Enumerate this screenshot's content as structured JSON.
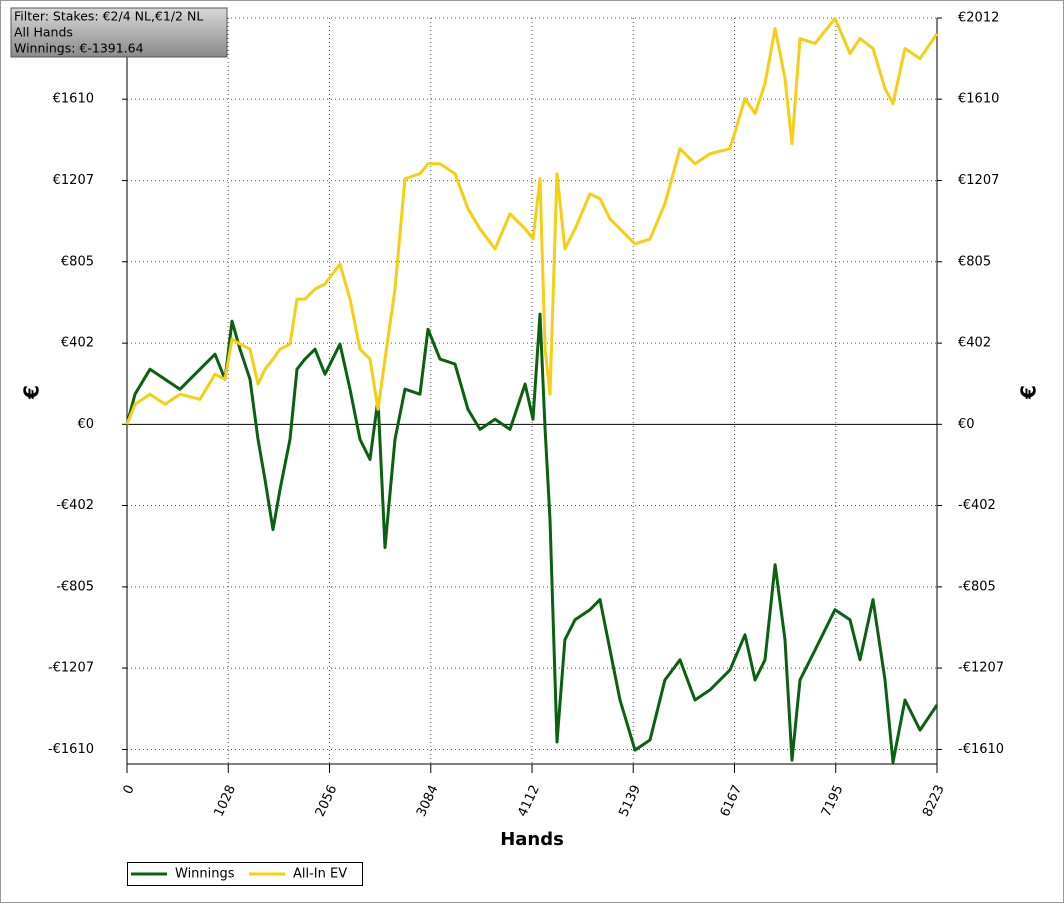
{
  "chart_data": {
    "type": "line",
    "annotations": [
      "Filter: Stakes: €2/4 NL,€1/2 NL",
      "All Hands",
      "Winnings: €-1391.64"
    ],
    "xlabel": "Hands",
    "ylabel": "€",
    "y2label": "€",
    "x": [
      0,
      81,
      233,
      386,
      538,
      741,
      893,
      995,
      1066,
      1147,
      1249,
      1330,
      1401,
      1482,
      1553,
      1655,
      1726,
      1807,
      1909,
      2010,
      2162,
      2264,
      2365,
      2467,
      2548,
      2619,
      2721,
      2822,
      2975,
      3056,
      3178,
      3330,
      3462,
      3584,
      3736,
      3888,
      4041,
      4122,
      4193,
      4244,
      4294,
      4365,
      4446,
      4548,
      4700,
      4802,
      4903,
      5005,
      5157,
      5309,
      5461,
      5614,
      5766,
      5919,
      6122,
      6274,
      6376,
      6477,
      6579,
      6680,
      6751,
      6832,
      6985,
      7188,
      7340,
      7441,
      7573,
      7695,
      7776,
      7898,
      8050,
      8223
    ],
    "series": [
      {
        "name": "Winnings",
        "color": "#0b6011",
        "values": [
          0,
          149,
          273,
          223,
          174,
          273,
          347,
          223,
          511,
          372,
          223,
          -74,
          -273,
          -521,
          -323,
          -74,
          273,
          323,
          372,
          248,
          397,
          174,
          -74,
          -174,
          124,
          -610,
          -74,
          174,
          149,
          471,
          323,
          298,
          74,
          -25,
          25,
          -25,
          199,
          25,
          546,
          -25,
          -471,
          -1573,
          -1067,
          -968,
          -918,
          -868,
          -1117,
          -1365,
          -1613,
          -1563,
          -1266,
          -1166,
          -1365,
          -1315,
          -1216,
          -1042,
          -1266,
          -1166,
          -695,
          -1067,
          -1663,
          -1266,
          -1117,
          -918,
          -968,
          -1166,
          -868,
          -1266,
          -1673,
          -1365,
          -1514,
          -1390
        ]
      },
      {
        "name": "All-In EV",
        "color": "#f5cf12",
        "values": [
          0,
          99,
          149,
          99,
          149,
          124,
          248,
          223,
          422,
          397,
          372,
          199,
          273,
          323,
          372,
          397,
          620,
          620,
          670,
          695,
          794,
          620,
          372,
          323,
          74,
          323,
          670,
          1216,
          1241,
          1290,
          1290,
          1241,
          1067,
          968,
          868,
          1042,
          968,
          918,
          1216,
          372,
          149,
          1241,
          868,
          968,
          1141,
          1117,
          1017,
          968,
          893,
          918,
          1092,
          1365,
          1290,
          1340,
          1365,
          1613,
          1539,
          1687,
          1960,
          1712,
          1390,
          1910,
          1886,
          2010,
          1836,
          1910,
          1861,
          1663,
          1588,
          1861,
          1811,
          1935
        ]
      }
    ],
    "xlim": [
      0,
      8223
    ],
    "xticks": [
      0,
      1028,
      2056,
      3084,
      4112,
      5139,
      6167,
      7195,
      8223
    ],
    "ylim": [
      -1682,
      2012
    ],
    "yticks": [
      {
        "value": -1610,
        "label": "-€1610"
      },
      {
        "value": -1207,
        "label": "-€1207"
      },
      {
        "value": -805,
        "label": "-€805"
      },
      {
        "value": -402,
        "label": "-€402"
      },
      {
        "value": 0,
        "label": "€0"
      },
      {
        "value": 402,
        "label": "€402"
      },
      {
        "value": 805,
        "label": "€805"
      },
      {
        "value": 1207,
        "label": "€1207"
      },
      {
        "value": 1610,
        "label": "€1610"
      },
      {
        "value": 2012,
        "label": "€2012"
      }
    ],
    "grid": true
  }
}
